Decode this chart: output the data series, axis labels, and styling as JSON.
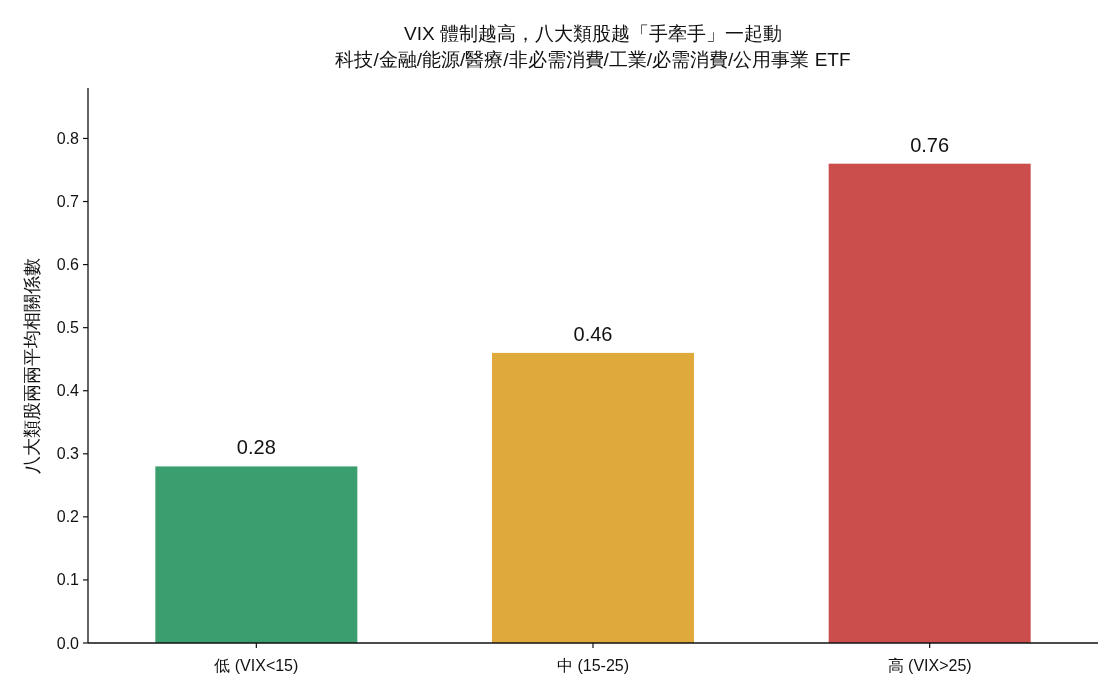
{
  "chart_data": {
    "type": "bar",
    "title": "VIX 體制越高，八大類股越「手牽手」一起動",
    "subtitle": "科技/金融/能源/醫療/非必需消費/工業/必需消費/公用事業 ETF",
    "ylabel": "八大類股兩兩平均相關係數",
    "categories": [
      "低 (VIX<15)",
      "中 (15-25)",
      "高 (VIX>25)"
    ],
    "values": [
      0.28,
      0.46,
      0.76
    ],
    "colors": [
      "#3a9e6e",
      "#dfa93c",
      "#cc4e4c"
    ],
    "ylim": [
      0,
      0.88
    ],
    "yticks": [
      {
        "value": 0,
        "label": "0.0"
      },
      0.1,
      0.2,
      0.3,
      0.4,
      0.5,
      0.6,
      0.7,
      0.8
    ],
    "data_labels": true
  }
}
